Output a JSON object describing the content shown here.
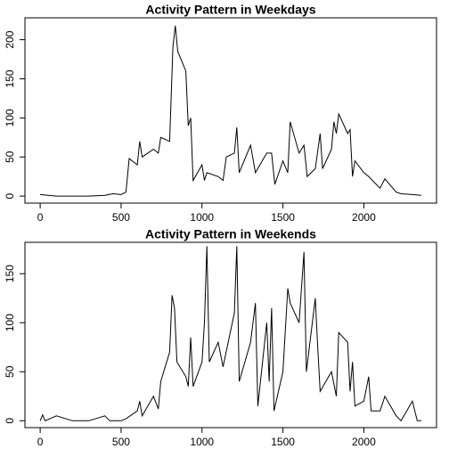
{
  "chart_data": [
    {
      "type": "line",
      "title": "Activity Pattern in Weekdays",
      "color": "#000000",
      "x": [
        0,
        100,
        200,
        300,
        400,
        450,
        500,
        530,
        550,
        600,
        615,
        630,
        700,
        730,
        745,
        800,
        820,
        835,
        850,
        900,
        915,
        930,
        945,
        1000,
        1015,
        1030,
        1100,
        1130,
        1150,
        1200,
        1215,
        1230,
        1300,
        1330,
        1400,
        1430,
        1450,
        1500,
        1530,
        1545,
        1600,
        1630,
        1650,
        1700,
        1730,
        1745,
        1800,
        1815,
        1830,
        1845,
        1900,
        1915,
        1930,
        1945,
        2000,
        2030,
        2100,
        2130,
        2200,
        2230,
        2300,
        2355
      ],
      "values": [
        2,
        0,
        0,
        0,
        1,
        3,
        2,
        5,
        48,
        40,
        70,
        50,
        60,
        55,
        75,
        70,
        190,
        218,
        185,
        160,
        90,
        100,
        20,
        40,
        20,
        30,
        25,
        20,
        50,
        55,
        88,
        30,
        65,
        30,
        55,
        55,
        15,
        45,
        30,
        95,
        55,
        65,
        25,
        35,
        80,
        35,
        60,
        95,
        80,
        105,
        80,
        85,
        25,
        45,
        30,
        25,
        10,
        22,
        5,
        3,
        2,
        1
      ],
      "xlim": [
        -94.2,
        2449.2
      ],
      "ylim": [
        -9,
        228
      ],
      "xticks": [
        0,
        500,
        1000,
        1500,
        2000
      ],
      "yticks": [
        0,
        50,
        100,
        150,
        200
      ]
    },
    {
      "type": "line",
      "title": "Activity Pattern in Weekends",
      "color": "#000000",
      "x": [
        0,
        15,
        30,
        100,
        200,
        300,
        400,
        430,
        500,
        530,
        600,
        615,
        630,
        700,
        730,
        745,
        800,
        815,
        830,
        845,
        900,
        915,
        930,
        945,
        1000,
        1015,
        1030,
        1045,
        1100,
        1130,
        1200,
        1215,
        1230,
        1300,
        1330,
        1345,
        1400,
        1415,
        1430,
        1445,
        1500,
        1530,
        1545,
        1600,
        1630,
        1645,
        1700,
        1715,
        1730,
        1800,
        1830,
        1845,
        1900,
        1915,
        1930,
        1945,
        2000,
        2030,
        2045,
        2100,
        2130,
        2200,
        2230,
        2300,
        2330,
        2355
      ],
      "values": [
        0,
        6,
        0,
        5,
        0,
        0,
        5,
        0,
        0,
        2,
        10,
        20,
        5,
        25,
        12,
        40,
        70,
        128,
        115,
        60,
        45,
        35,
        85,
        35,
        60,
        100,
        178,
        60,
        80,
        55,
        110,
        178,
        40,
        80,
        120,
        15,
        100,
        40,
        115,
        10,
        50,
        135,
        120,
        100,
        172,
        50,
        125,
        75,
        30,
        50,
        25,
        90,
        80,
        30,
        60,
        15,
        20,
        45,
        10,
        10,
        25,
        5,
        0,
        20,
        0,
        0
      ],
      "xlim": [
        -94.2,
        2449.2
      ],
      "ylim": [
        -7,
        182
      ],
      "xticks": [
        0,
        500,
        1000,
        1500,
        2000
      ],
      "yticks": [
        0,
        50,
        100,
        150
      ]
    }
  ]
}
